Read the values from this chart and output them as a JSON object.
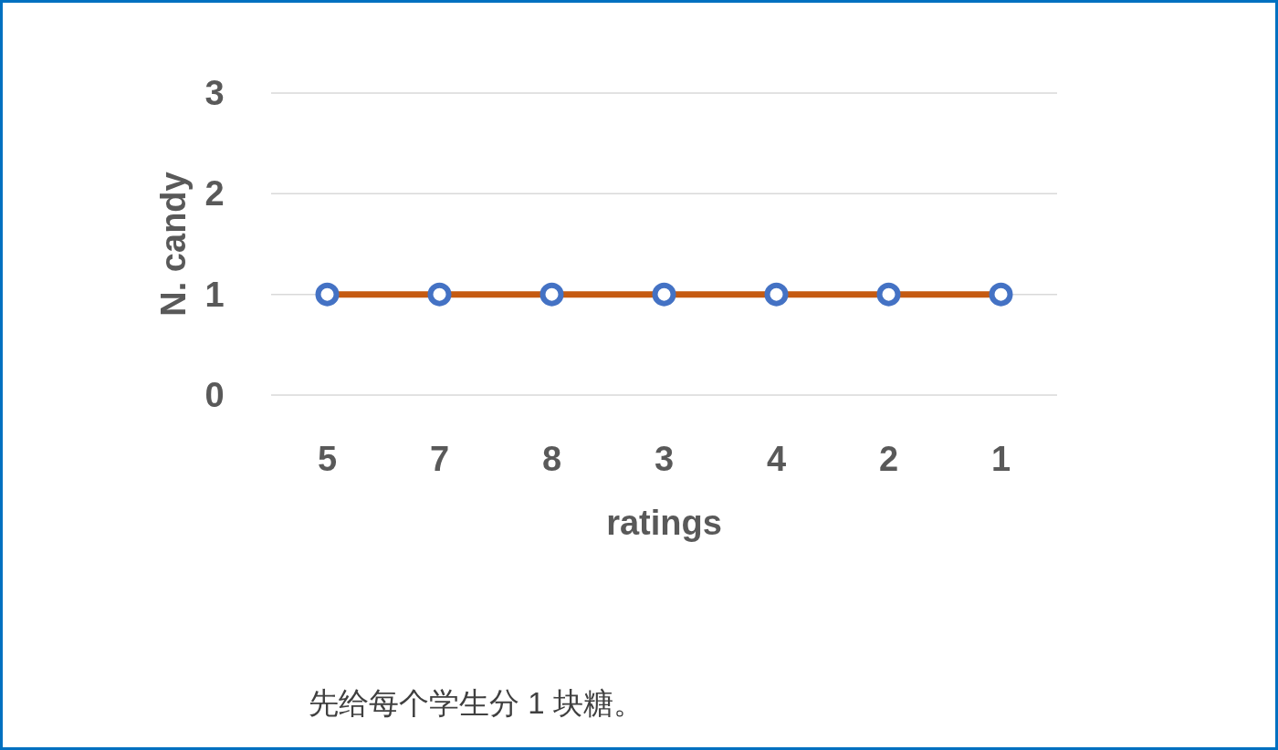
{
  "chart_data": {
    "type": "line",
    "xlabel": "ratings",
    "ylabel": "N. candy",
    "categories": [
      "5",
      "7",
      "8",
      "3",
      "4",
      "2",
      "1"
    ],
    "series": [
      {
        "color": "#c55a11",
        "values": [
          1,
          1,
          1,
          1,
          1,
          1,
          1
        ],
        "colors": [
          "#4472c4",
          "#4472c4",
          "#4472c4",
          "#4472c4",
          "#4472c4",
          "#4472c4",
          "#4472c4"
        ]
      }
    ],
    "ylim": [
      0,
      3
    ],
    "yticks": [
      0,
      1,
      2,
      3
    ],
    "grid": "y",
    "marker": "circle",
    "line_style": "solid",
    "annotations": [
      "先给每个学生分 1 块糖。"
    ]
  }
}
